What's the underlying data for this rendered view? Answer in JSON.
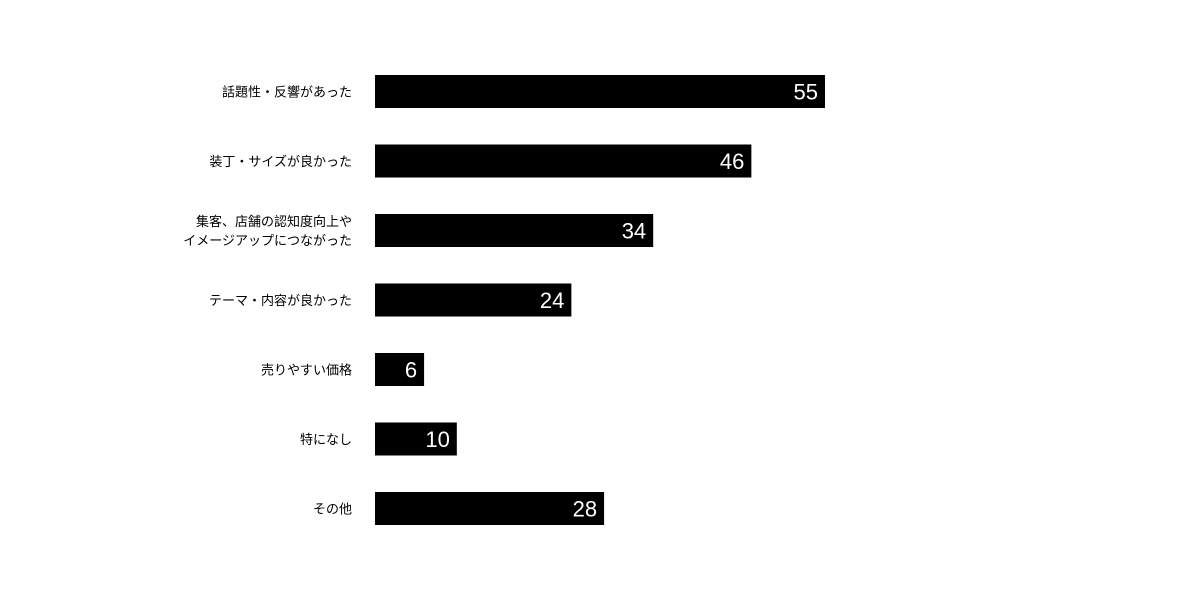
{
  "chart_data": {
    "type": "bar",
    "orientation": "horizontal",
    "categories": [
      [
        "話題性・反響があった"
      ],
      [
        "装丁・サイズが良かった"
      ],
      [
        "集客、店舗の認知度向上や",
        "イメージアップにつながった"
      ],
      [
        "テーマ・内容が良かった"
      ],
      [
        "売りやすい価格"
      ],
      [
        "特になし"
      ],
      [
        "その他"
      ]
    ],
    "values": [
      55,
      46,
      34,
      24,
      6,
      10,
      28
    ],
    "title": "",
    "xlabel": "",
    "ylabel": "",
    "xlim": [
      0,
      55
    ],
    "grid": false,
    "bar_color": "#000000",
    "label_color": "#ffffff"
  }
}
